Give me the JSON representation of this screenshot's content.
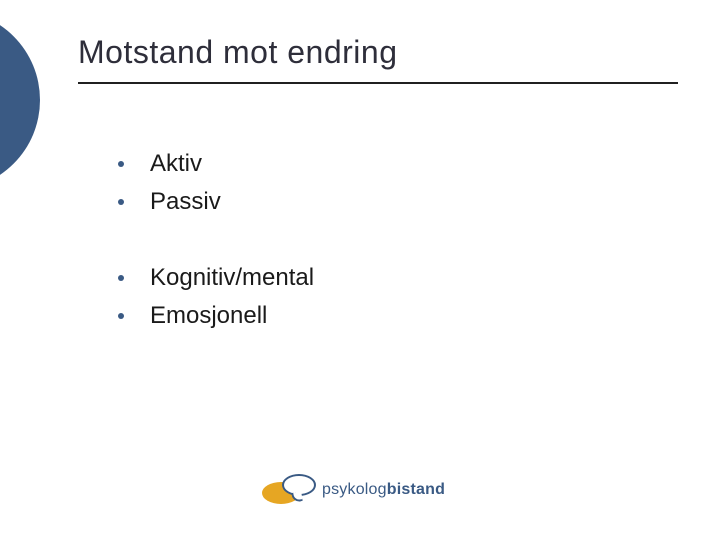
{
  "colors": {
    "accent": "#3a5a84",
    "title": "#2e2e3a",
    "rule": "#202020",
    "bullet_dot": "#3a5a84",
    "bullet_text": "#1a1a1a",
    "logo_ellipse": "#e6a623",
    "logo_outline": "#3a5a84",
    "logo_text": "#3a5a84",
    "background": "#ffffff"
  },
  "title": "Motstand mot endring",
  "groups": [
    {
      "items": [
        "Aktiv",
        "Passiv"
      ]
    },
    {
      "items": [
        "Kognitiv/mental",
        "Emosjonell"
      ]
    }
  ],
  "logo": {
    "text_normal": "psykolog",
    "text_bold": "bistand"
  }
}
